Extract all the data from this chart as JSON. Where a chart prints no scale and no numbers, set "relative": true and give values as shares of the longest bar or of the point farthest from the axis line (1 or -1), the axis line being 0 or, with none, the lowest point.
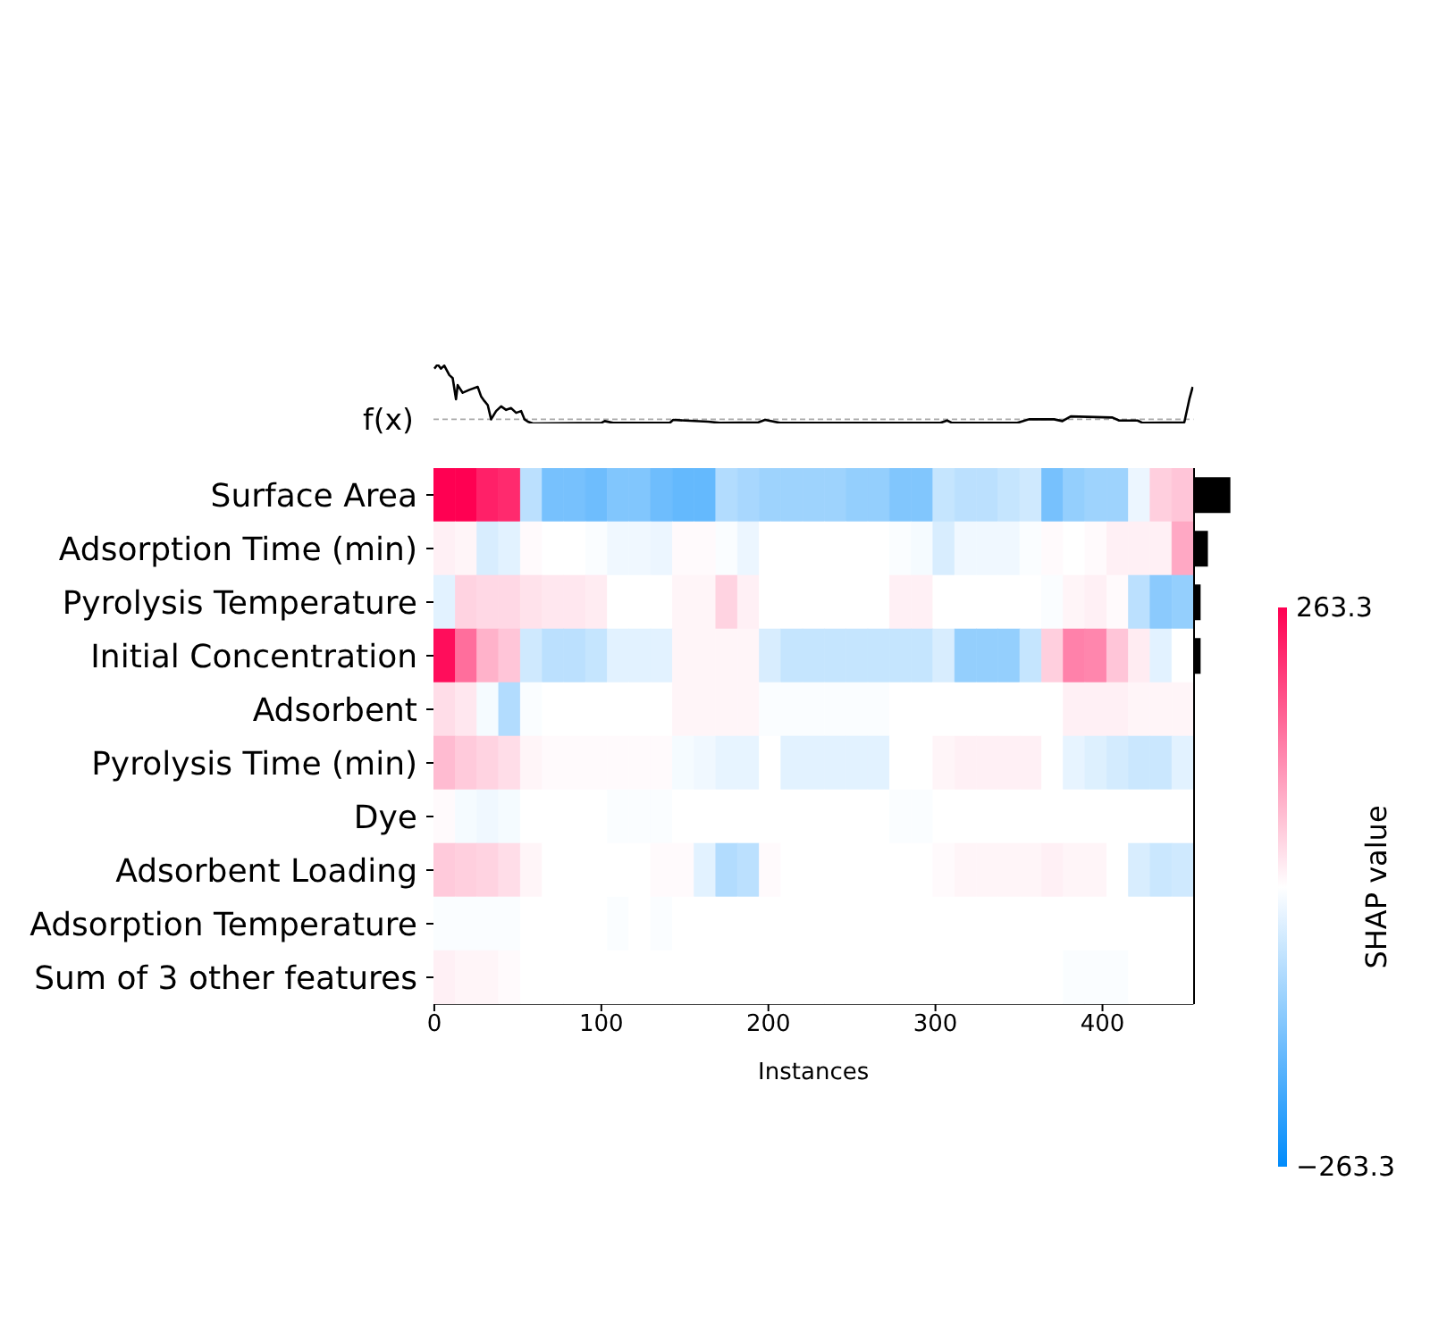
{
  "chart_data": [
    {
      "type": "line",
      "relative": true,
      "ylabel": "f(x)",
      "color": "#000000",
      "xlim": [
        -0.5,
        454.5
      ],
      "tick_labels": false,
      "x": [
        0,
        2,
        4,
        6,
        9,
        11,
        13,
        14,
        17,
        21,
        26,
        28,
        30,
        32,
        34,
        37,
        40,
        43,
        46,
        49,
        52,
        54,
        56,
        59,
        100,
        102,
        107,
        141,
        143,
        164,
        171,
        194,
        198,
        207,
        303,
        307,
        310,
        349,
        356,
        371,
        376,
        381,
        406,
        410,
        421,
        424,
        449,
        452,
        454
      ],
      "values": [
        0.93,
        1,
        0.93,
        0.98,
        0.82,
        0.77,
        0.41,
        0.65,
        0.52,
        0.57,
        0.62,
        0.46,
        0.38,
        0.31,
        0.07,
        0.21,
        0.29,
        0.23,
        0.26,
        0.18,
        0.21,
        0.07,
        0.03,
        0,
        0.01,
        0.04,
        0.01,
        0.01,
        0.06,
        0.03,
        0.01,
        0.02,
        0.06,
        0.01,
        0.01,
        0.05,
        0.01,
        0.01,
        0.07,
        0.07,
        0.04,
        0.12,
        0.1,
        0.05,
        0.05,
        0.01,
        0.02,
        0.41,
        0.62
      ],
      "ref_lines": [
        {
          "axis": "y",
          "value": 0.07,
          "color": "#aaaaaa",
          "line_style": "dashed"
        }
      ]
    },
    {
      "type": "heatmap",
      "xlabel": "Instances",
      "xlim": [
        -0.5,
        454.5
      ],
      "xticks": [
        0,
        100,
        200,
        300,
        400
      ],
      "x": [
        6,
        19,
        32,
        45,
        58,
        71,
        84,
        97,
        110,
        123,
        136,
        149,
        162,
        175,
        188,
        201,
        214,
        227,
        240,
        253,
        266,
        279,
        292,
        305,
        318,
        331,
        344,
        357,
        370,
        383,
        396,
        409,
        422,
        435,
        448
      ],
      "y_categories": [
        "Surface Area",
        "Adsorption Time (min)",
        "Pyrolysis Temperature",
        "Initial Concentration",
        "Adsorbent",
        "Pyrolysis Time (min)",
        "Dye",
        "Adsorbent Loading",
        "Adsorption Temperature",
        "Sum of 3 other features"
      ],
      "cells": [
        [
          263,
          263,
          230,
          220,
          -70,
          -140,
          -140,
          -150,
          -130,
          -130,
          -150,
          -160,
          -160,
          -80,
          -90,
          -100,
          -100,
          -100,
          -100,
          -110,
          -110,
          -130,
          -130,
          -60,
          -70,
          -70,
          -60,
          -50,
          -140,
          -110,
          -100,
          -100,
          -20,
          50,
          60
        ],
        [
          15,
          10,
          -40,
          -30,
          5,
          0,
          0,
          -5,
          -15,
          -15,
          -20,
          5,
          5,
          -5,
          -20,
          0,
          0,
          0,
          0,
          0,
          0,
          -5,
          -10,
          -40,
          -15,
          -15,
          -15,
          -5,
          5,
          0,
          5,
          15,
          15,
          15,
          90
        ],
        [
          -30,
          45,
          40,
          40,
          30,
          25,
          25,
          20,
          0,
          0,
          0,
          10,
          10,
          45,
          15,
          0,
          0,
          0,
          0,
          0,
          0,
          15,
          15,
          0,
          0,
          0,
          0,
          0,
          -5,
          10,
          15,
          5,
          -70,
          -120,
          -110
        ],
        [
          250,
          150,
          80,
          60,
          -50,
          -70,
          -70,
          -60,
          -30,
          -30,
          -30,
          10,
          10,
          10,
          10,
          -40,
          -60,
          -60,
          -60,
          -60,
          -60,
          -60,
          -60,
          -40,
          -110,
          -110,
          -110,
          -60,
          50,
          130,
          125,
          60,
          20,
          -30,
          0
        ],
        [
          35,
          25,
          -10,
          -80,
          -5,
          0,
          0,
          0,
          0,
          0,
          0,
          10,
          10,
          10,
          10,
          -5,
          -5,
          -5,
          -5,
          -5,
          -5,
          0,
          0,
          0,
          0,
          0,
          0,
          0,
          0,
          15,
          15,
          15,
          10,
          10,
          10
        ],
        [
          70,
          55,
          45,
          35,
          10,
          5,
          5,
          5,
          5,
          5,
          5,
          -10,
          -15,
          -25,
          -25,
          0,
          -30,
          -30,
          -30,
          -30,
          -30,
          0,
          0,
          10,
          15,
          15,
          15,
          15,
          0,
          -25,
          -35,
          -45,
          -55,
          -55,
          -30
        ],
        [
          5,
          -10,
          -15,
          -10,
          0,
          0,
          0,
          0,
          -5,
          -5,
          -5,
          0,
          0,
          0,
          0,
          0,
          0,
          0,
          0,
          0,
          0,
          -5,
          -5,
          0,
          0,
          0,
          0,
          0,
          0,
          0,
          0,
          0,
          0,
          0,
          0
        ],
        [
          55,
          50,
          45,
          35,
          10,
          0,
          0,
          0,
          0,
          0,
          5,
          5,
          -30,
          -80,
          -70,
          5,
          0,
          0,
          0,
          0,
          0,
          0,
          0,
          5,
          10,
          10,
          10,
          10,
          15,
          10,
          10,
          0,
          -40,
          -55,
          -50
        ],
        [
          -5,
          -5,
          -5,
          -5,
          0,
          0,
          0,
          0,
          -5,
          0,
          -5,
          0,
          0,
          0,
          0,
          0,
          0,
          0,
          0,
          0,
          0,
          0,
          0,
          0,
          0,
          0,
          0,
          0,
          0,
          0,
          0,
          0,
          0,
          0,
          0
        ],
        [
          15,
          10,
          10,
          5,
          0,
          0,
          0,
          0,
          0,
          0,
          0,
          0,
          0,
          0,
          0,
          0,
          0,
          0,
          0,
          0,
          0,
          0,
          0,
          0,
          0,
          0,
          0,
          0,
          0,
          -5,
          -5,
          -5,
          0,
          0,
          0
        ]
      ],
      "clim": [
        -263.3,
        263.3
      ],
      "cticks": [
        263.3,
        -263.3
      ],
      "clabel": "SHAP value"
    },
    {
      "type": "bar",
      "orientation": "horizontal",
      "relative": true,
      "tick_labels": false,
      "color": "#000000",
      "categories": [
        null,
        null,
        null,
        null,
        null,
        null,
        null,
        null,
        null,
        null
      ],
      "values": [
        1,
        0.38,
        0.18,
        0.18,
        null,
        null,
        null,
        null,
        null,
        null
      ]
    }
  ]
}
